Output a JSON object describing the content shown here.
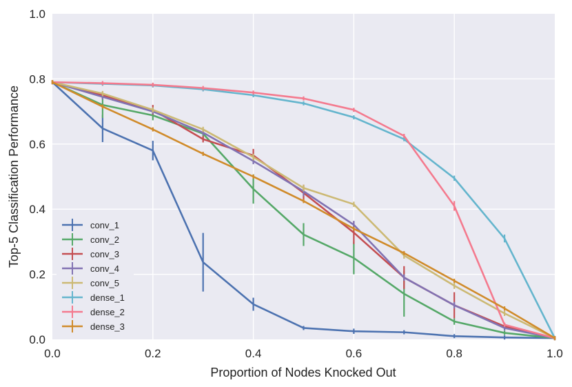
{
  "chart_data": {
    "type": "line",
    "title": "",
    "xlabel": "Proportion of Nodes Knocked Out",
    "ylabel": "Top-5 Classification Performance",
    "xlim": [
      0.0,
      1.0
    ],
    "ylim": [
      0.0,
      1.0
    ],
    "x_ticks": [
      0.0,
      0.2,
      0.4,
      0.6,
      0.8,
      1.0
    ],
    "y_ticks": [
      0.0,
      0.2,
      0.4,
      0.6,
      0.8,
      1.0
    ],
    "x_tick_labels": [
      "0.0",
      "0.2",
      "0.4",
      "0.6",
      "0.8",
      "1.0"
    ],
    "y_tick_labels": [
      "0.0",
      "0.2",
      "0.4",
      "0.6",
      "0.8",
      "1.0"
    ],
    "grid": true,
    "legend_position": "lower-left",
    "x": [
      0.0,
      0.1,
      0.2,
      0.3,
      0.4,
      0.5,
      0.6,
      0.7,
      0.8,
      0.9,
      1.0
    ],
    "series": [
      {
        "name": "conv_1",
        "color": "#4c72b0",
        "values": [
          0.79,
          0.648,
          0.58,
          0.237,
          0.108,
          0.035,
          0.025,
          0.022,
          0.01,
          0.006,
          0.004
        ],
        "errors": [
          0,
          0.042,
          0.03,
          0.09,
          0.02,
          0,
          0.008,
          0,
          0,
          0,
          0
        ]
      },
      {
        "name": "conv_2",
        "color": "#55a868",
        "values": [
          0.79,
          0.72,
          0.688,
          0.632,
          0.462,
          0.322,
          0.25,
          0.14,
          0.055,
          0.02,
          0.004
        ],
        "errors": [
          0,
          0.04,
          0.015,
          0.015,
          0.045,
          0.035,
          0.05,
          0.07,
          0.01,
          0,
          0
        ]
      },
      {
        "name": "conv_3",
        "color": "#c44e52",
        "values": [
          0.79,
          0.75,
          0.705,
          0.615,
          0.565,
          0.45,
          0.328,
          0.19,
          0.105,
          0.04,
          0.004
        ],
        "errors": [
          0,
          0.01,
          0.015,
          0.01,
          0.02,
          0.025,
          0.035,
          0.035,
          0.04,
          0.01,
          0
        ]
      },
      {
        "name": "conv_4",
        "color": "#8172b2",
        "values": [
          0.79,
          0.745,
          0.7,
          0.635,
          0.548,
          0.455,
          0.352,
          0.19,
          0.105,
          0.035,
          0.004
        ],
        "errors": [
          0,
          0.008,
          0.008,
          0.008,
          0.01,
          0.015,
          0.012,
          0.01,
          0.01,
          0.008,
          0
        ]
      },
      {
        "name": "conv_5",
        "color": "#ccb974",
        "values": [
          0.79,
          0.755,
          0.705,
          0.645,
          0.56,
          0.465,
          0.415,
          0.258,
          0.165,
          0.08,
          0.004
        ],
        "errors": [
          0,
          0.008,
          0.008,
          0.008,
          0.01,
          0.01,
          0.008,
          0.01,
          0.01,
          0.008,
          0
        ]
      },
      {
        "name": "dense_1",
        "color": "#64b5cd",
        "values": [
          0.79,
          0.785,
          0.78,
          0.768,
          0.75,
          0.725,
          0.682,
          0.615,
          0.495,
          0.31,
          0.004
        ],
        "errors": [
          0,
          0,
          0,
          0,
          0,
          0.004,
          0.004,
          0.004,
          0.008,
          0.012,
          0
        ]
      },
      {
        "name": "dense_2",
        "color": "#f47a8e",
        "values": [
          0.79,
          0.787,
          0.782,
          0.772,
          0.758,
          0.74,
          0.705,
          0.625,
          0.41,
          0.045,
          0.004
        ],
        "errors": [
          0,
          0,
          0,
          0,
          0,
          0,
          0,
          0.006,
          0.015,
          0.006,
          0
        ]
      },
      {
        "name": "dense_3",
        "color": "#d08b2a",
        "values": [
          0.79,
          0.715,
          0.645,
          0.57,
          0.5,
          0.425,
          0.34,
          0.265,
          0.18,
          0.095,
          0.004
        ],
        "errors": [
          0,
          0,
          0,
          0,
          0,
          0,
          0,
          0,
          0,
          0,
          0
        ]
      }
    ]
  }
}
